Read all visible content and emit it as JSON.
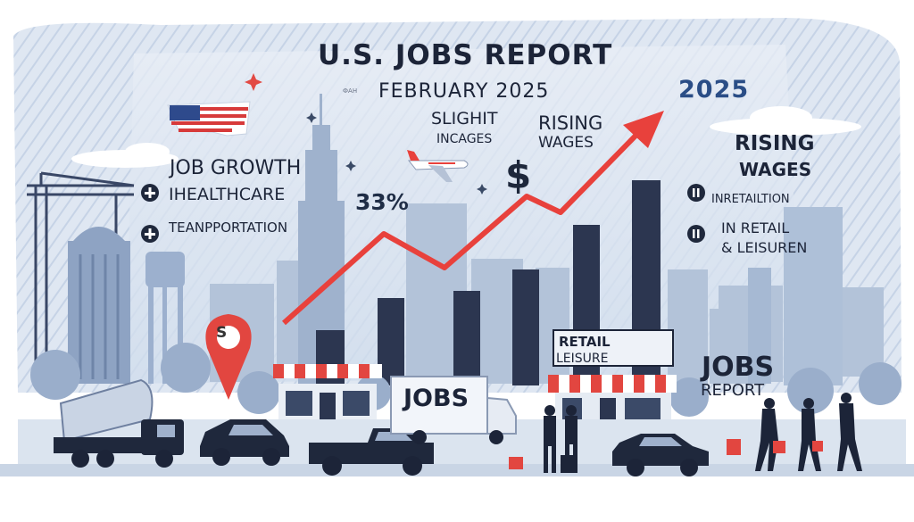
{
  "title": "U.S. JOBS REPORT",
  "subtitle": "FEBRUARY 2025",
  "subtitle_prefix": "ФАН",
  "year_badge": "2025",
  "left_panel": {
    "heading": "JOB GROWTH",
    "items": [
      {
        "label": "IHEALTHCARE",
        "icon": "plus-icon"
      },
      {
        "label": "TEANPPORTATION",
        "icon": "plus-icon"
      }
    ]
  },
  "center": {
    "slight_line1": "SLIGHIT",
    "slight_line2": "INCAGES",
    "rising_line1": "RISING",
    "rising_line2": "WAGES",
    "percent": "33%",
    "dollar": "$",
    "pin_label": "S"
  },
  "right_panel": {
    "heading_line1": "RISING",
    "heading_line2": "WAGES",
    "items": [
      {
        "label": "INRETAILTION",
        "icon": "paused-circle-icon"
      },
      {
        "label": "IN RETAIL",
        "icon": "paused-circle-icon"
      }
    ],
    "leisure": "& LEISUREN"
  },
  "signs": {
    "truck": "JOBS",
    "store_line1": "RETAIL",
    "store_line2": "LEISURE",
    "report_line1": "JOBS",
    "report_line2": "REPORT"
  },
  "colors": {
    "accent_red": "#e8413c",
    "navy": "#1c2438",
    "sky": "#d9e3f0",
    "building_blue": "#9bb0cc"
  }
}
